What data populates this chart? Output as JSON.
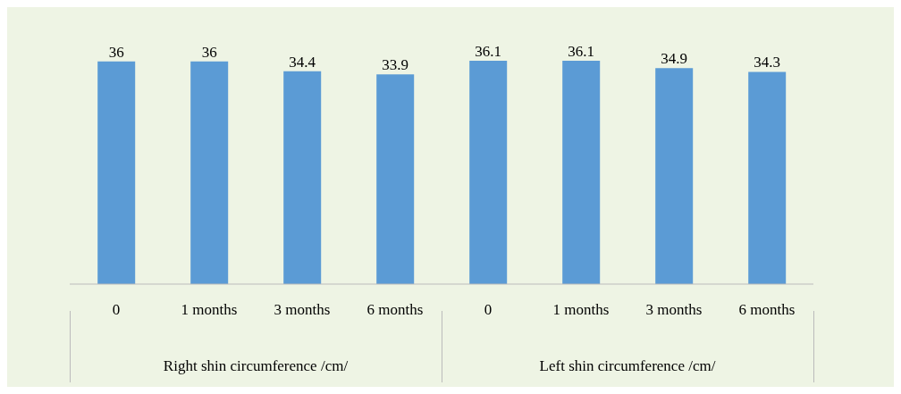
{
  "chart_data": {
    "type": "bar",
    "categories": [
      "0",
      "1 months",
      "3 months",
      "6 months",
      "0",
      "1 months",
      "3 months",
      "6 months"
    ],
    "values": [
      36,
      36,
      34.4,
      33.9,
      36.1,
      36.1,
      34.9,
      34.3
    ],
    "color": "#5b9bd5",
    "data_labels": true,
    "annotations": [
      "Right shin circumference /cm/",
      "Left shin circumference /cm/"
    ]
  }
}
